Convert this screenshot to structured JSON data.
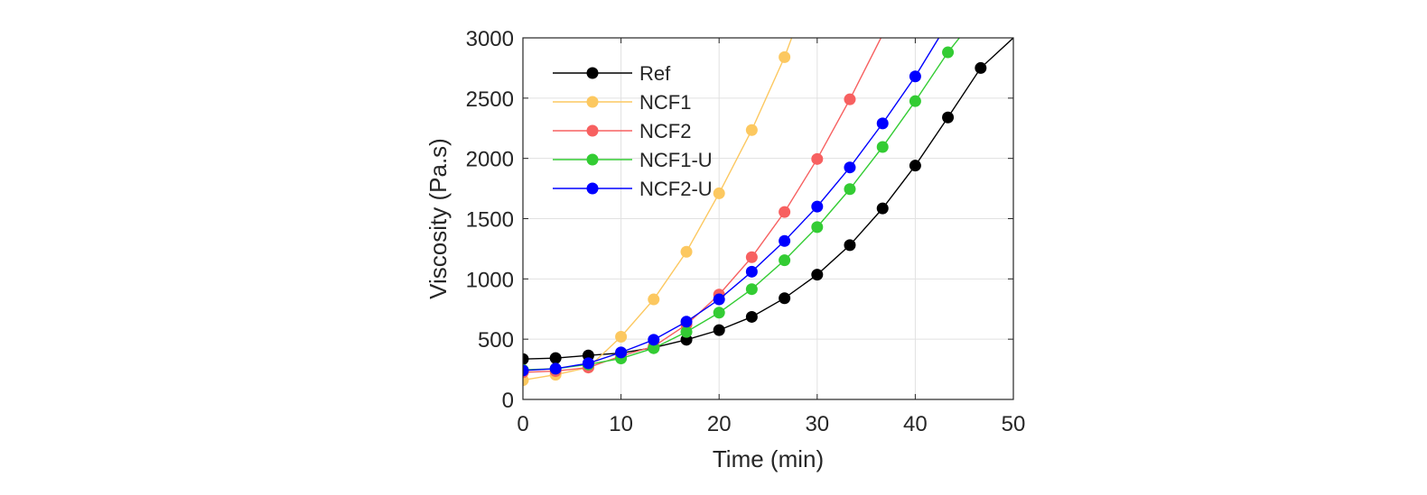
{
  "chart_data": {
    "type": "line",
    "title": "",
    "xlabel": "Time (min)",
    "ylabel": "Viscosity (Pa.s)",
    "xlim": [
      0,
      50
    ],
    "ylim": [
      0,
      3000
    ],
    "xticks": [
      0,
      10,
      20,
      30,
      40,
      50
    ],
    "yticks": [
      0,
      500,
      1000,
      1500,
      2000,
      2500,
      3000
    ],
    "grid": true,
    "legend_position": "top-left",
    "series": [
      {
        "name": "Ref",
        "color": "#000000",
        "x": [
          0,
          3.33,
          6.67,
          10,
          13.33,
          16.67,
          20,
          23.33,
          26.67,
          30,
          33.33,
          36.67,
          40,
          43.33,
          46.67,
          50
        ],
        "values": [
          335,
          343,
          365,
          385,
          430,
          495,
          575,
          685,
          840,
          1035,
          1280,
          1585,
          1940,
          2340,
          2750,
          3000
        ]
      },
      {
        "name": "NCF1",
        "color": "#FCC860",
        "x": [
          0,
          3.33,
          6.67,
          10,
          13.33,
          16.67,
          20,
          23.33,
          26.67,
          27.4
        ],
        "values": [
          160,
          205,
          265,
          520,
          830,
          1225,
          1710,
          2235,
          2840,
          3000
        ]
      },
      {
        "name": "NCF2",
        "color": "#F76060",
        "x": [
          0,
          3.33,
          6.67,
          10,
          13.33,
          16.67,
          20,
          23.33,
          26.67,
          30,
          33.33,
          36.5
        ],
        "values": [
          225,
          235,
          265,
          360,
          440,
          620,
          870,
          1180,
          1555,
          1995,
          2490,
          3000
        ]
      },
      {
        "name": "NCF1-U",
        "color": "#33CC33",
        "x": [
          0,
          3.33,
          6.67,
          10,
          13.33,
          16.67,
          20,
          23.33,
          26.67,
          30,
          33.33,
          36.67,
          40,
          43.33,
          44.5
        ],
        "values": [
          245,
          255,
          290,
          340,
          425,
          560,
          720,
          915,
          1155,
          1430,
          1745,
          2095,
          2475,
          2880,
          3000
        ]
      },
      {
        "name": "NCF2-U",
        "color": "#0000FF",
        "x": [
          0,
          3.33,
          6.67,
          10,
          13.33,
          16.67,
          20,
          23.33,
          26.67,
          30,
          33.33,
          36.67,
          40,
          42.4
        ],
        "values": [
          240,
          255,
          300,
          390,
          495,
          645,
          830,
          1060,
          1315,
          1600,
          1925,
          2290,
          2680,
          3000
        ]
      }
    ]
  }
}
